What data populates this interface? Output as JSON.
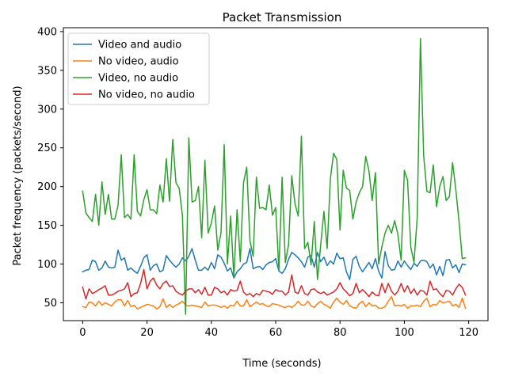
{
  "chart_data": {
    "type": "line",
    "title": "Packet Transmission",
    "xlabel": "Time (seconds)",
    "ylabel": "Packet frequency (packets/second)",
    "xlim": [
      -6,
      126
    ],
    "ylim": [
      27,
      405
    ],
    "xticks": [
      0,
      20,
      40,
      60,
      80,
      100,
      120
    ],
    "yticks": [
      50,
      100,
      150,
      200,
      250,
      300,
      350,
      400
    ],
    "grid": false,
    "legend_position": "top-left",
    "x": [
      0,
      1,
      2,
      3,
      4,
      5,
      6,
      7,
      8,
      9,
      10,
      11,
      12,
      13,
      14,
      15,
      16,
      17,
      18,
      19,
      20,
      21,
      22,
      23,
      24,
      25,
      26,
      27,
      28,
      29,
      30,
      31,
      32,
      33,
      34,
      35,
      36,
      37,
      38,
      39,
      40,
      41,
      42,
      43,
      44,
      45,
      46,
      47,
      48,
      49,
      50,
      51,
      52,
      53,
      54,
      55,
      56,
      57,
      58,
      59,
      60,
      61,
      62,
      63,
      64,
      65,
      66,
      67,
      68,
      69,
      70,
      71,
      72,
      73,
      74,
      75,
      76,
      77,
      78,
      79,
      80,
      81,
      82,
      83,
      84,
      85,
      86,
      87,
      88,
      89,
      90,
      91,
      92,
      93,
      94,
      95,
      96,
      97,
      98,
      99,
      100,
      101,
      102,
      103,
      104,
      105,
      106,
      107,
      108,
      109,
      110,
      111,
      112,
      113,
      114,
      115,
      116,
      117,
      118,
      119
    ],
    "series": [
      {
        "name": "Video and audio",
        "color": "#1f77b4",
        "values": [
          90,
          92,
          93,
          105,
          103,
          92,
          95,
          104,
          96,
          95,
          96,
          118,
          105,
          108,
          92,
          95,
          91,
          88,
          97,
          108,
          112,
          92,
          98,
          100,
          90,
          92,
          111,
          105,
          100,
          96,
          100,
          108,
          104,
          110,
          120,
          105,
          92,
          92,
          96,
          92,
          102,
          94,
          112,
          109,
          101,
          91,
          95,
          82,
          90,
          94,
          100,
          102,
          120,
          94,
          96,
          97,
          93,
          99,
          102,
          103,
          107,
          91,
          88,
          94,
          106,
          115,
          112,
          108,
          103,
          96,
          109,
          111,
          96,
          115,
          103,
          109,
          98,
          104,
          100,
          114,
          107,
          108,
          90,
          80,
          106,
          110,
          97,
          90,
          96,
          102,
          94,
          107,
          91,
          82,
          116,
          98,
          92,
          93,
          104,
          96,
          104,
          98,
          93,
          101,
          97,
          104,
          105,
          103,
          95,
          100,
          86,
          97,
          85,
          105,
          106,
          95,
          99,
          89,
          100,
          99
        ]
      },
      {
        "name": "No video, audio",
        "color": "#ff7f0e",
        "values": [
          45,
          44,
          51,
          50,
          46,
          52,
          47,
          50,
          48,
          46,
          51,
          54,
          54,
          46,
          53,
          45,
          47,
          42,
          44,
          46,
          48,
          47,
          46,
          42,
          45,
          55,
          44,
          48,
          44,
          47,
          49,
          52,
          47,
          46,
          47,
          46,
          45,
          44,
          51,
          46,
          47,
          47,
          46,
          44,
          46,
          43,
          47,
          46,
          52,
          46,
          46,
          54,
          45,
          48,
          51,
          48,
          49,
          46,
          45,
          49,
          48,
          47,
          45,
          44,
          46,
          44,
          47,
          52,
          47,
          47,
          52,
          46,
          44,
          49,
          52,
          48,
          46,
          43,
          51,
          56,
          51,
          48,
          53,
          46,
          44,
          43,
          49,
          52,
          45,
          50,
          46,
          47,
          43,
          43,
          45,
          52,
          58,
          46,
          47,
          46,
          48,
          43,
          46,
          46,
          47,
          45,
          52,
          56,
          45,
          48,
          47,
          53,
          50,
          51,
          52,
          46,
          48,
          44,
          56,
          43
        ]
      },
      {
        "name": "Video, no audio",
        "color": "#2ca02c",
        "values": [
          194,
          166,
          160,
          155,
          190,
          150,
          206,
          164,
          190,
          158,
          158,
          176,
          241,
          160,
          164,
          158,
          241,
          168,
          162,
          183,
          196,
          170,
          170,
          165,
          202,
          180,
          236,
          181,
          261,
          205,
          198,
          163,
          35,
          263,
          180,
          182,
          200,
          134,
          234,
          140,
          153,
          175,
          118,
          140,
          254,
          100,
          162,
          83,
          170,
          103,
          205,
          225,
          130,
          110,
          212,
          172,
          173,
          170,
          202,
          163,
          173,
          92,
          212,
          102,
          125,
          214,
          178,
          162,
          265,
          120,
          128,
          99,
          155,
          80,
          125,
          168,
          120,
          210,
          243,
          235,
          144,
          221,
          198,
          195,
          158,
          180,
          192,
          200,
          239,
          220,
          182,
          218,
          100,
          122,
          140,
          150,
          140,
          156,
          138,
          105,
          221,
          208,
          122,
          102,
          160,
          391,
          240,
          194,
          192,
          228,
          174,
          200,
          213,
          182,
          187,
          231,
          196,
          155,
          107,
          108
        ]
      },
      {
        "name": "No video, no audio",
        "color": "#d62728",
        "values": [
          70,
          55,
          68,
          62,
          64,
          67,
          69,
          72,
          60,
          60,
          62,
          65,
          66,
          68,
          76,
          58,
          62,
          63,
          75,
          93,
          68,
          78,
          82,
          73,
          68,
          75,
          78,
          71,
          72,
          65,
          62,
          60,
          65,
          68,
          68,
          63,
          67,
          61,
          70,
          60,
          60,
          70,
          68,
          63,
          65,
          60,
          67,
          65,
          66,
          78,
          64,
          60,
          62,
          58,
          62,
          60,
          66,
          65,
          64,
          61,
          67,
          65,
          65,
          60,
          64,
          86,
          64,
          62,
          72,
          62,
          60,
          67,
          68,
          64,
          62,
          64,
          60,
          62,
          64,
          68,
          76,
          68,
          64,
          59,
          62,
          75,
          63,
          67,
          63,
          58,
          64,
          60,
          59,
          75,
          63,
          75,
          65,
          60,
          65,
          75,
          64,
          72,
          62,
          68,
          60,
          66,
          65,
          60,
          78,
          67,
          68,
          62,
          58,
          66,
          65,
          60,
          68,
          74,
          70,
          60
        ]
      }
    ]
  }
}
